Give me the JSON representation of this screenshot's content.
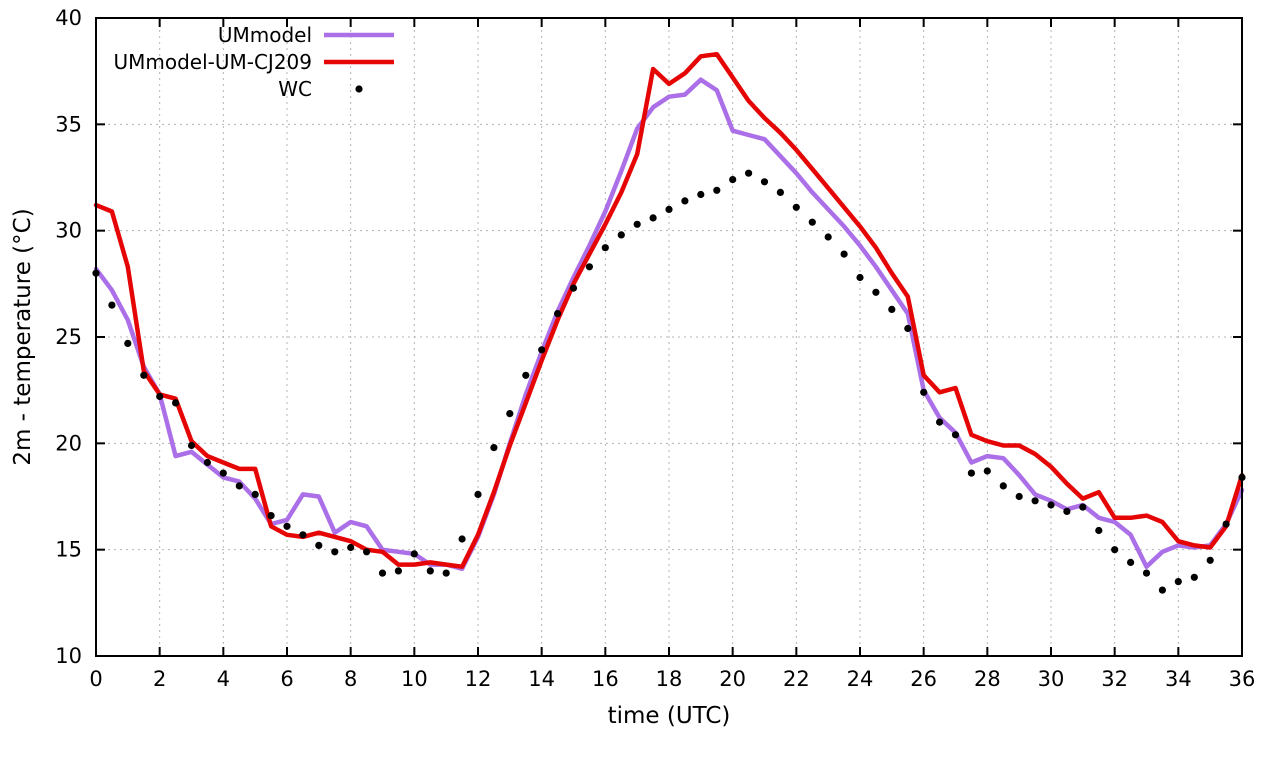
{
  "chart_data": {
    "type": "line",
    "title": "",
    "xlabel": "time (UTC)",
    "ylabel": "2m - temperature (°C)",
    "xlim": [
      0,
      36
    ],
    "ylim": [
      10,
      40
    ],
    "x_ticks": [
      0,
      2,
      4,
      6,
      8,
      10,
      12,
      14,
      16,
      18,
      20,
      22,
      24,
      26,
      28,
      30,
      32,
      34,
      36
    ],
    "y_ticks": [
      10,
      15,
      20,
      25,
      30,
      35,
      40
    ],
    "grid": true,
    "grid_style": "dotted",
    "legend_position": "top-left-inside",
    "x": [
      0,
      0.5,
      1,
      1.5,
      2,
      2.5,
      3,
      3.5,
      4,
      4.5,
      5,
      5.5,
      6,
      6.5,
      7,
      7.5,
      8,
      8.5,
      9,
      9.5,
      10,
      10.5,
      11,
      11.5,
      12,
      12.5,
      13,
      13.5,
      14,
      14.5,
      15,
      15.5,
      16,
      16.5,
      17,
      17.5,
      18,
      18.5,
      19,
      19.5,
      20,
      20.5,
      21,
      21.5,
      22,
      22.5,
      23,
      23.5,
      24,
      24.5,
      25,
      25.5,
      26,
      26.5,
      27,
      27.5,
      28,
      28.5,
      29,
      29.5,
      30,
      30.5,
      31,
      31.5,
      32,
      32.5,
      33,
      33.5,
      34,
      34.5,
      35,
      35.5,
      36
    ],
    "series": [
      {
        "name": "UMmodel",
        "type": "line",
        "color": "#ab6fe8",
        "width": 4.5,
        "values": [
          28.2,
          27.2,
          25.8,
          23.6,
          22.3,
          19.4,
          19.6,
          19.0,
          18.4,
          18.2,
          17.4,
          16.2,
          16.4,
          17.6,
          17.5,
          15.8,
          16.3,
          16.1,
          15.0,
          14.9,
          14.8,
          14.3,
          14.3,
          14.1,
          15.6,
          17.6,
          20.0,
          22.3,
          24.3,
          26.2,
          27.8,
          29.3,
          30.9,
          32.8,
          34.8,
          35.8,
          36.3,
          36.4,
          37.1,
          36.6,
          34.7,
          34.5,
          34.3,
          33.5,
          32.7,
          31.8,
          31.0,
          30.2,
          29.3,
          28.3,
          27.2,
          26.1,
          22.5,
          21.2,
          20.5,
          19.1,
          19.4,
          19.3,
          18.5,
          17.6,
          17.3,
          16.9,
          17.1,
          16.5,
          16.3,
          15.7,
          14.2,
          14.9,
          15.2,
          15.1,
          15.2,
          16.2,
          17.8
        ]
      },
      {
        "name": "UMmodel-UM-CJ209",
        "type": "line",
        "color": "#e60505",
        "width": 4.5,
        "values": [
          31.2,
          30.9,
          28.3,
          23.4,
          22.3,
          22.1,
          20.1,
          19.4,
          19.1,
          18.8,
          18.8,
          16.1,
          15.7,
          15.6,
          15.8,
          15.6,
          15.4,
          15.0,
          14.9,
          14.3,
          14.3,
          14.4,
          14.3,
          14.2,
          15.7,
          17.7,
          19.9,
          21.9,
          23.9,
          25.8,
          27.5,
          28.9,
          30.3,
          31.8,
          33.6,
          37.6,
          36.9,
          37.4,
          38.2,
          38.3,
          37.2,
          36.1,
          35.3,
          34.6,
          33.8,
          32.9,
          32.0,
          31.1,
          30.2,
          29.2,
          28.0,
          26.9,
          23.2,
          22.4,
          22.6,
          20.4,
          20.1,
          19.9,
          19.9,
          19.5,
          18.9,
          18.1,
          17.4,
          17.7,
          16.5,
          16.5,
          16.6,
          16.3,
          15.4,
          15.2,
          15.1,
          16.1,
          18.5
        ]
      },
      {
        "name": "WC",
        "type": "scatter",
        "color": "#000000",
        "marker": "dot",
        "marker_size": 3.6,
        "values": [
          28.0,
          26.5,
          24.7,
          23.2,
          22.2,
          21.9,
          19.9,
          19.1,
          18.6,
          18.0,
          17.6,
          16.6,
          16.1,
          15.7,
          15.2,
          14.9,
          15.1,
          14.9,
          13.9,
          14.0,
          14.8,
          14.0,
          13.9,
          15.5,
          17.6,
          19.8,
          21.4,
          23.2,
          24.4,
          26.1,
          27.3,
          28.3,
          29.2,
          29.8,
          30.3,
          30.6,
          31.0,
          31.4,
          31.7,
          31.9,
          32.4,
          32.7,
          32.3,
          31.8,
          31.1,
          30.4,
          29.7,
          28.9,
          27.8,
          27.1,
          26.3,
          25.4,
          22.4,
          21.0,
          20.4,
          18.6,
          18.7,
          18.0,
          17.5,
          17.3,
          17.1,
          16.8,
          17.0,
          15.9,
          15.0,
          14.4,
          13.9,
          13.1,
          13.5,
          13.7,
          14.5,
          16.2,
          18.4
        ]
      }
    ],
    "colors": {
      "grid": "#b4b4b4",
      "border": "#000000",
      "background": "#ffffff"
    }
  }
}
